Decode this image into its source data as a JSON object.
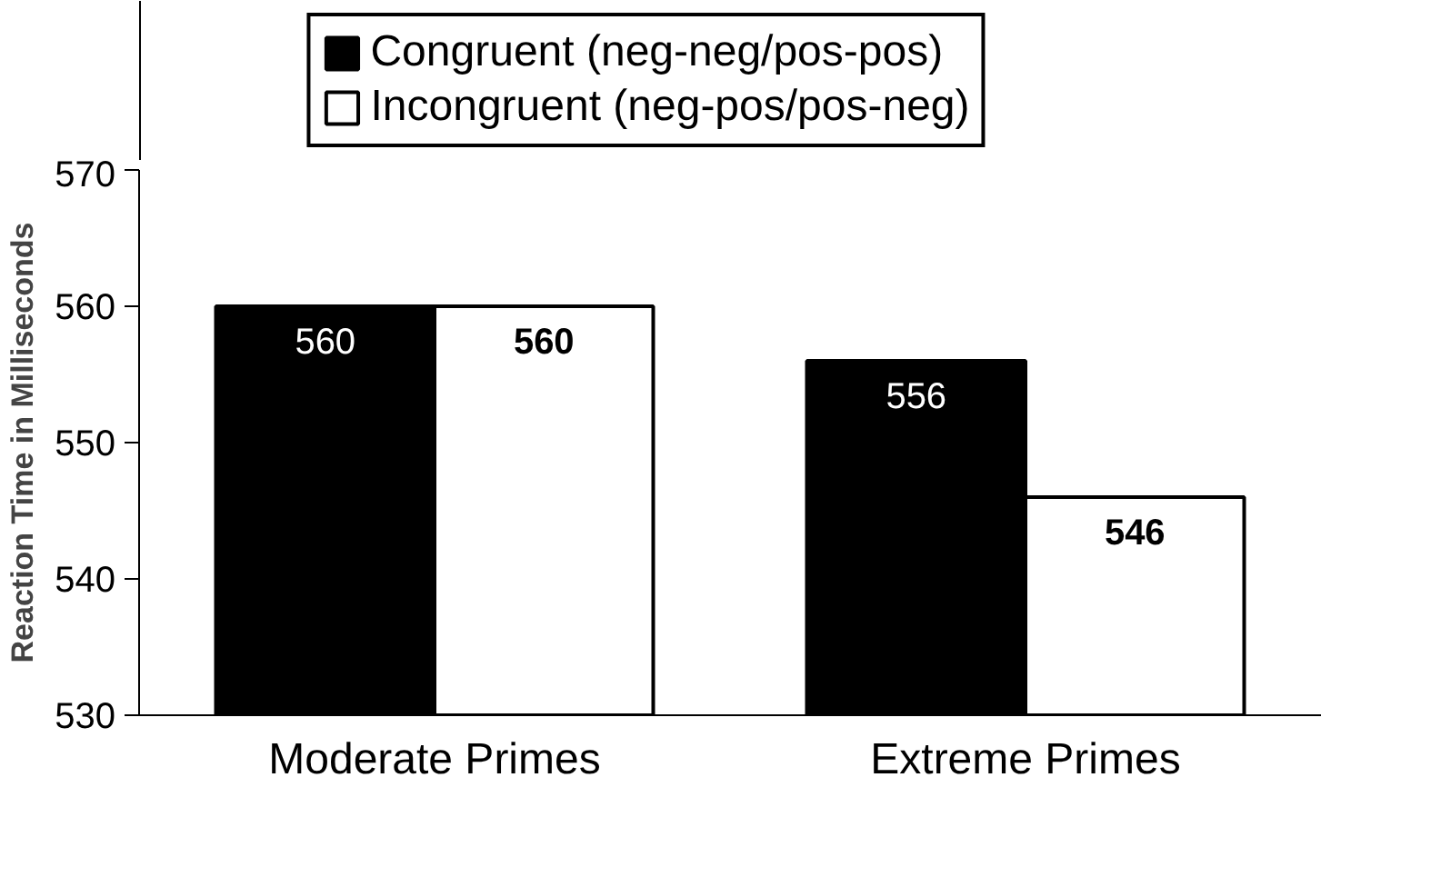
{
  "chart_data": {
    "type": "bar",
    "ylabel": "Reaction Time in Milliseconds",
    "categories": [
      "Moderate Primes",
      "Extreme Primes"
    ],
    "series": [
      {
        "name": "Congruent (neg-neg/pos-pos)",
        "color": "#000000",
        "values": [
          560,
          556
        ]
      },
      {
        "name": "Incongruent (neg-pos/pos-neg)",
        "color": "#ffffff",
        "values": [
          560,
          546
        ]
      }
    ],
    "ylim": [
      530,
      570
    ],
    "yticks": [
      530,
      540,
      550,
      560,
      570
    ],
    "grid": false,
    "legend": "top",
    "data_labels": true
  }
}
